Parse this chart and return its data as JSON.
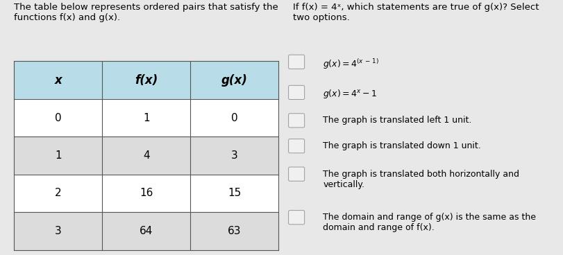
{
  "bg_color": "#e8e8e8",
  "left_title": "The table below represents ordered pairs that satisfy the\nfunctions f(x) and g(x).",
  "right_title": "If f(x) = 4ˣ, which statements are true of g(x)? Select\ntwo options.",
  "table_header": [
    "x",
    "f(x)",
    "g(x)"
  ],
  "table_rows": [
    [
      "0",
      "1",
      "0"
    ],
    [
      "1",
      "4",
      "3"
    ],
    [
      "2",
      "16",
      "15"
    ],
    [
      "3",
      "64",
      "63"
    ]
  ],
  "header_bg": "#b8dce8",
  "row_bg_white": "#ffffff",
  "row_bg_gray": "#dcdcdc",
  "option_texts": [
    "g(x) = 4^{(x - 1)}",
    "g(x) = 4^x - 1",
    "The graph is translated left 1 unit.",
    "The graph is translated down 1 unit.",
    "The graph is translated both horizontally and\nvertically.",
    "The domain and range of g(x) is the same as the\ndomain and range of f(x)."
  ],
  "title_fontsize": 9.5,
  "cell_fontsize": 11,
  "option_fontsize": 9.0
}
